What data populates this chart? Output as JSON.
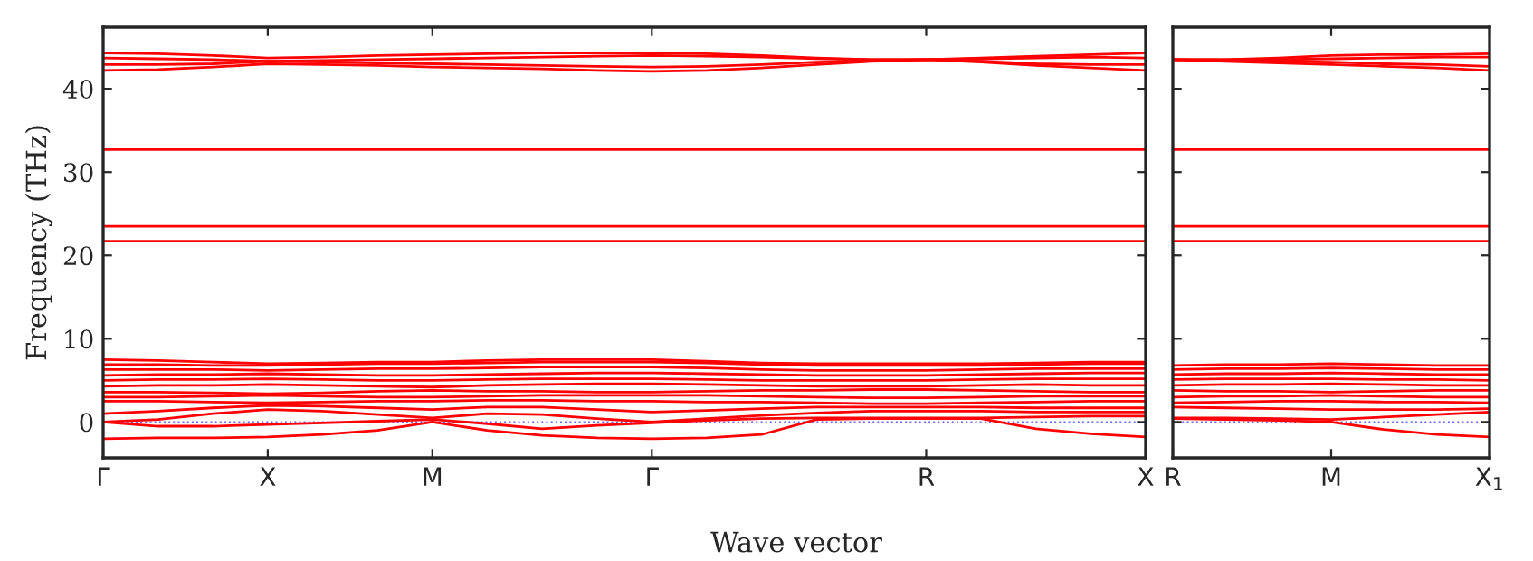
{
  "chart_data": [
    {
      "type": "line",
      "ylabel": "Frequency (THz)",
      "xlabel": "Wave vector",
      "categories": [
        "Γ",
        null,
        null,
        "X",
        null,
        null,
        "M",
        null,
        null,
        null,
        "Γ",
        null,
        null,
        null,
        null,
        "R",
        null,
        null,
        null,
        "X"
      ],
      "ylim": [
        -4.3,
        47.4
      ],
      "yticks": [
        0,
        10,
        20,
        30,
        40
      ],
      "grid": false,
      "marker": "none",
      "line_style": "solid",
      "ref_lines": [
        {
          "axis": "y",
          "value": 0,
          "color": "#6666ff",
          "line_style": "dotted"
        }
      ],
      "series": [
        {
          "color": "#ff0000",
          "values": [
            -2,
            -1.9,
            -1.9,
            -1.8,
            -1.5,
            -1.0,
            0,
            -1.0,
            -1.6,
            -1.9,
            -2,
            -1.9,
            -1.5,
            0.3,
            0.4,
            0.4,
            0.4,
            -0.8,
            -1.4,
            -1.8
          ]
        },
        {
          "color": "#ff0000",
          "values": [
            0,
            -0.5,
            -0.5,
            -0.3,
            -0.1,
            0.1,
            0.3,
            -0.2,
            -0.8,
            -0.4,
            -0.1,
            0.2,
            0.4,
            0.5,
            0.5,
            0.5,
            0.5,
            0.6,
            0.7,
            0.7
          ]
        },
        {
          "color": "#ff0000",
          "values": [
            0,
            0.3,
            1.0,
            1.5,
            1.3,
            0.9,
            0.5,
            1.0,
            0.9,
            0.4,
            0,
            0.4,
            0.8,
            1.1,
            1.3,
            1.3,
            1.3,
            1.2,
            1.2,
            1.2
          ]
        },
        {
          "color": "#ff0000",
          "values": [
            1.0,
            1.3,
            1.7,
            2.0,
            1.9,
            1.7,
            1.5,
            1.8,
            1.8,
            1.5,
            1.2,
            1.4,
            1.6,
            1.8,
            1.8,
            1.8,
            1.8,
            1.7,
            1.7,
            1.7
          ]
        },
        {
          "color": "#ff0000",
          "values": [
            2.5,
            2.5,
            2.4,
            2.3,
            2.4,
            2.5,
            2.5,
            2.6,
            2.6,
            2.5,
            2.5,
            2.4,
            2.4,
            2.3,
            2.2,
            2.2,
            2.3,
            2.4,
            2.5,
            2.5
          ]
        },
        {
          "color": "#ff0000",
          "values": [
            3.0,
            3.0,
            3.1,
            3.2,
            3.1,
            3.0,
            3.0,
            3.1,
            3.2,
            3.2,
            3.2,
            3.2,
            3.1,
            3.0,
            2.9,
            2.9,
            3.0,
            3.1,
            3.1,
            3.1
          ]
        },
        {
          "color": "#ff0000",
          "values": [
            3.6,
            3.6,
            3.5,
            3.4,
            3.5,
            3.7,
            3.8,
            3.7,
            3.7,
            3.6,
            3.6,
            3.7,
            3.8,
            3.8,
            3.9,
            3.9,
            3.8,
            3.7,
            3.6,
            3.6
          ]
        },
        {
          "color": "#ff0000",
          "values": [
            4.3,
            4.4,
            4.4,
            4.5,
            4.4,
            4.3,
            4.2,
            4.4,
            4.5,
            4.6,
            4.6,
            4.5,
            4.4,
            4.3,
            4.3,
            4.3,
            4.4,
            4.5,
            4.4,
            4.4
          ]
        },
        {
          "color": "#ff0000",
          "values": [
            5.0,
            5.1,
            5.1,
            5.2,
            5.1,
            5.0,
            5.0,
            5.1,
            5.2,
            5.2,
            5.2,
            5.1,
            5.0,
            5.0,
            5.0,
            5.0,
            5.1,
            5.2,
            5.2,
            5.2
          ]
        },
        {
          "color": "#ff0000",
          "values": [
            5.6,
            5.7,
            5.7,
            5.8,
            5.7,
            5.6,
            5.6,
            5.7,
            5.8,
            5.9,
            5.9,
            5.8,
            5.7,
            5.6,
            5.6,
            5.6,
            5.7,
            5.8,
            5.9,
            5.9
          ]
        },
        {
          "color": "#ff0000",
          "values": [
            6.3,
            6.3,
            6.3,
            6.2,
            6.3,
            6.4,
            6.4,
            6.5,
            6.6,
            6.6,
            6.6,
            6.5,
            6.3,
            6.2,
            6.2,
            6.2,
            6.3,
            6.4,
            6.4,
            6.4
          ]
        },
        {
          "color": "#ff0000",
          "values": [
            6.9,
            6.9,
            6.8,
            6.8,
            6.9,
            7.0,
            7.0,
            7.1,
            7.2,
            7.2,
            7.2,
            7.1,
            6.9,
            6.8,
            6.8,
            6.8,
            6.8,
            6.9,
            7.0,
            7.0
          ]
        },
        {
          "color": "#ff0000",
          "values": [
            7.5,
            7.4,
            7.2,
            7.0,
            7.1,
            7.2,
            7.2,
            7.4,
            7.5,
            7.5,
            7.5,
            7.3,
            7.1,
            7.0,
            7.0,
            7.0,
            7.0,
            7.1,
            7.2,
            7.2
          ]
        },
        {
          "color": "#ff0000",
          "values": [
            21.7,
            21.7,
            21.7,
            21.7,
            21.7,
            21.7,
            21.7,
            21.7,
            21.7,
            21.7,
            21.7,
            21.7,
            21.7,
            21.7,
            21.7,
            21.7,
            21.7,
            21.7,
            21.7,
            21.7
          ]
        },
        {
          "color": "#ff0000",
          "values": [
            23.5,
            23.5,
            23.5,
            23.5,
            23.5,
            23.5,
            23.5,
            23.5,
            23.5,
            23.5,
            23.5,
            23.5,
            23.5,
            23.5,
            23.5,
            23.5,
            23.5,
            23.5,
            23.5,
            23.5
          ]
        },
        {
          "color": "#ff0000",
          "values": [
            32.7,
            32.7,
            32.7,
            32.7,
            32.7,
            32.7,
            32.7,
            32.7,
            32.7,
            32.7,
            32.7,
            32.7,
            32.7,
            32.7,
            32.7,
            32.7,
            32.7,
            32.7,
            32.7,
            32.7
          ]
        },
        {
          "color": "#ff0000",
          "values": [
            44.3,
            44.2,
            44.0,
            43.7,
            43.8,
            44.0,
            44.1,
            44.2,
            44.3,
            44.3,
            44.3,
            44.2,
            44.0,
            43.7,
            43.5,
            43.5,
            43.7,
            43.9,
            44.1,
            44.3
          ]
        },
        {
          "color": "#ff0000",
          "values": [
            43.7,
            43.6,
            43.5,
            43.3,
            43.4,
            43.5,
            43.6,
            43.7,
            43.8,
            43.9,
            44.0,
            43.9,
            43.8,
            43.6,
            43.5,
            43.5,
            43.6,
            43.7,
            43.8,
            43.7
          ]
        },
        {
          "color": "#ff0000",
          "values": [
            42.9,
            42.9,
            43.0,
            43.3,
            43.2,
            43.1,
            43.0,
            42.9,
            42.8,
            42.7,
            42.6,
            42.7,
            42.9,
            43.2,
            43.4,
            43.5,
            43.3,
            43.0,
            42.9,
            42.9
          ]
        },
        {
          "color": "#ff0000",
          "values": [
            42.2,
            42.3,
            42.6,
            43.0,
            42.9,
            42.8,
            42.6,
            42.5,
            42.4,
            42.2,
            42.1,
            42.2,
            42.5,
            42.9,
            43.3,
            43.5,
            43.2,
            42.8,
            42.5,
            42.2
          ]
        }
      ]
    },
    {
      "type": "line",
      "categories": [
        "R",
        null,
        null,
        "M",
        null,
        null,
        "X$_{1}$"
      ],
      "ylim": [
        -4.3,
        47.4
      ],
      "yticks": [
        {
          "value": 0,
          "label": null
        },
        {
          "value": 10,
          "label": null
        },
        {
          "value": 20,
          "label": null
        },
        {
          "value": 30,
          "label": null
        },
        {
          "value": 40,
          "label": null
        }
      ],
      "tick_labels": "x",
      "grid": false,
      "marker": "none",
      "line_style": "solid",
      "ref_lines": [
        {
          "axis": "y",
          "value": 0,
          "color": "#6666ff",
          "line_style": "dotted"
        }
      ],
      "series": [
        {
          "color": "#ff0000",
          "values": [
            0.4,
            0.3,
            0.2,
            0,
            -0.9,
            -1.5,
            -1.8
          ]
        },
        {
          "color": "#ff0000",
          "values": [
            0.5,
            0.5,
            0.4,
            0.3,
            0.6,
            0.9,
            1.2
          ]
        },
        {
          "color": "#ff0000",
          "values": [
            1.8,
            1.7,
            1.6,
            1.5,
            1.5,
            1.5,
            1.6
          ]
        },
        {
          "color": "#ff0000",
          "values": [
            2.3,
            2.4,
            2.5,
            2.5,
            2.4,
            2.4,
            2.3
          ]
        },
        {
          "color": "#ff0000",
          "values": [
            3.0,
            3.1,
            3.1,
            3.2,
            3.1,
            3.0,
            3.0
          ]
        },
        {
          "color": "#ff0000",
          "values": [
            3.8,
            3.7,
            3.7,
            3.6,
            3.7,
            3.8,
            3.8
          ]
        },
        {
          "color": "#ff0000",
          "values": [
            4.4,
            4.5,
            4.5,
            4.6,
            4.5,
            4.4,
            4.4
          ]
        },
        {
          "color": "#ff0000",
          "values": [
            5.1,
            5.2,
            5.2,
            5.2,
            5.1,
            5.1,
            5.0
          ]
        },
        {
          "color": "#ff0000",
          "values": [
            5.7,
            5.8,
            5.8,
            5.9,
            5.8,
            5.7,
            5.7
          ]
        },
        {
          "color": "#ff0000",
          "values": [
            6.3,
            6.4,
            6.4,
            6.5,
            6.4,
            6.3,
            6.3
          ]
        },
        {
          "color": "#ff0000",
          "values": [
            6.8,
            6.9,
            6.9,
            7.0,
            6.9,
            6.8,
            6.8
          ]
        },
        {
          "color": "#ff0000",
          "values": [
            21.7,
            21.7,
            21.7,
            21.7,
            21.7,
            21.7,
            21.7
          ]
        },
        {
          "color": "#ff0000",
          "values": [
            23.5,
            23.5,
            23.5,
            23.5,
            23.5,
            23.5,
            23.5
          ]
        },
        {
          "color": "#ff0000",
          "values": [
            32.7,
            32.7,
            32.7,
            32.7,
            32.7,
            32.7,
            32.7
          ]
        },
        {
          "color": "#ff0000",
          "values": [
            43.5,
            43.5,
            43.7,
            44.0,
            44.1,
            44.1,
            44.2
          ]
        },
        {
          "color": "#ff0000",
          "values": [
            43.5,
            43.5,
            43.5,
            43.6,
            43.7,
            43.8,
            43.8
          ]
        },
        {
          "color": "#ff0000",
          "values": [
            43.5,
            43.4,
            43.3,
            43.2,
            43.0,
            42.9,
            42.7
          ]
        },
        {
          "color": "#ff0000",
          "values": [
            43.5,
            43.3,
            43.1,
            42.9,
            42.7,
            42.5,
            42.2
          ]
        }
      ]
    }
  ]
}
